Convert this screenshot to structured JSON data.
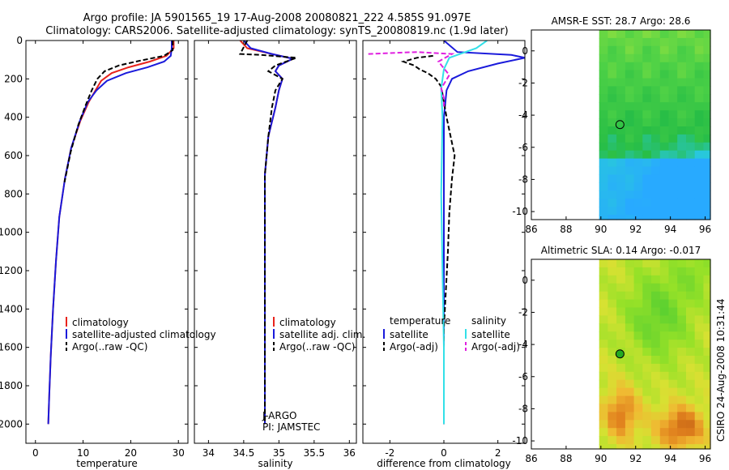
{
  "header": {
    "line1": "Argo profile: JA 5901565_19 17-Aug-2008 20080821_222 4.585S 91.097E",
    "line2": "Climatology: CARS2006. Satellite-adjusted climatology: synTS_20080819.nc (1.9d later)"
  },
  "side_label": "CSIRO 24-Aug-2008 10:31:44",
  "colors": {
    "red": "#e8231c",
    "blue": "#1a1adb",
    "black": "#000000",
    "cyan": "#33e0e8",
    "magenta": "#e020e0"
  },
  "chart_data": [
    {
      "type": "line",
      "id": "temperature",
      "xlabel": "temperature",
      "xlim": [
        -2,
        32
      ],
      "ylim": [
        0,
        2100
      ],
      "xticks": [
        "0",
        "10",
        "20",
        "30"
      ],
      "xtick_values": [
        0,
        10,
        20,
        30
      ],
      "yticks": [
        "0",
        "200",
        "400",
        "600",
        "800",
        "1000",
        "1200",
        "1400",
        "1600",
        "1800",
        "2000"
      ],
      "ytick_values": [
        0,
        200,
        400,
        600,
        800,
        1000,
        1200,
        1400,
        1600,
        1800,
        2000
      ],
      "legend": [
        "climatology",
        "satellite-adjusted climatology",
        "Argo(..raw -QC)"
      ],
      "series": [
        {
          "name": "climatology",
          "color": "red",
          "dash": false,
          "x": [
            29.0,
            29.0,
            27.5,
            24.0,
            19.5,
            16.0,
            13.8,
            12.6,
            11.2,
            9.4,
            7.5,
            6.2,
            5.0,
            4.3,
            3.7,
            3.2,
            2.9,
            2.7
          ],
          "y": [
            0,
            40,
            80,
            110,
            140,
            170,
            210,
            260,
            320,
            420,
            560,
            720,
            920,
            1150,
            1400,
            1650,
            1850,
            2000
          ]
        },
        {
          "name": "satellite-adjusted climatology",
          "color": "blue",
          "dash": false,
          "x": [
            28.6,
            28.6,
            28.4,
            27.0,
            23.5,
            19.0,
            15.0,
            12.8,
            11.0,
            9.3,
            7.5,
            6.2,
            5.0,
            4.3,
            3.7,
            3.2,
            2.9,
            2.7
          ],
          "y": [
            0,
            40,
            80,
            110,
            140,
            170,
            210,
            260,
            320,
            420,
            560,
            720,
            920,
            1150,
            1400,
            1650,
            1850,
            2000
          ]
        },
        {
          "name": "Argo(..raw -QC)",
          "color": "black",
          "dash": true,
          "x": [
            28.8,
            28.8,
            27.0,
            22.0,
            17.5,
            14.5,
            13.0,
            11.8,
            10.5,
            9.0,
            7.4,
            6.1
          ],
          "y": [
            0,
            50,
            80,
            105,
            130,
            160,
            200,
            260,
            340,
            440,
            580,
            740
          ]
        }
      ]
    },
    {
      "type": "line",
      "id": "salinity",
      "xlabel": "salinity",
      "xlim": [
        33.8,
        36.1
      ],
      "ylim": [
        0,
        2100
      ],
      "xticks": [
        "34",
        "34.5",
        "35",
        "35.5",
        "36"
      ],
      "xtick_values": [
        34,
        34.5,
        35,
        35.5,
        36
      ],
      "legend": [
        "climatology",
        "satellite adj. clim.",
        "Argo(..raw -QC)"
      ],
      "annotations": [
        "J-ARGO",
        "PI: JAMSTEC"
      ],
      "series": [
        {
          "name": "climatology",
          "color": "red",
          "dash": false,
          "x": [
            34.45,
            34.55,
            34.9,
            35.2,
            35.0,
            34.95,
            35.05,
            35.0,
            34.95,
            34.85,
            34.8,
            34.8,
            34.8,
            34.8
          ],
          "y": [
            0,
            40,
            70,
            95,
            130,
            160,
            200,
            260,
            350,
            500,
            700,
            1000,
            1500,
            2000
          ]
        },
        {
          "name": "satellite adj. clim.",
          "color": "blue",
          "dash": false,
          "x": [
            34.5,
            34.6,
            34.9,
            35.2,
            35.0,
            34.95,
            35.05,
            35.0,
            34.95,
            34.85,
            34.8,
            34.8,
            34.8,
            34.8
          ],
          "y": [
            0,
            40,
            70,
            95,
            130,
            160,
            200,
            260,
            350,
            500,
            700,
            1000,
            1500,
            2000
          ]
        },
        {
          "name": "Argo(..raw -QC)",
          "color": "black",
          "dash": true,
          "x": [
            34.55,
            34.45,
            34.75,
            35.25,
            34.95,
            34.85,
            35.05,
            34.95,
            34.9,
            34.85,
            34.8,
            34.8,
            34.8,
            34.8
          ],
          "y": [
            0,
            70,
            75,
            90,
            130,
            160,
            200,
            260,
            350,
            500,
            700,
            1000,
            1500,
            2000
          ]
        }
      ]
    },
    {
      "type": "line",
      "id": "difference",
      "xlabel": "difference from climatology",
      "xlim": [
        -3,
        3
      ],
      "ylim": [
        0,
        2100
      ],
      "xticks": [
        "-2",
        "0",
        "2"
      ],
      "xtick_values": [
        -2,
        0,
        2
      ],
      "legend_headers": [
        "temperature",
        "salinity"
      ],
      "legend": [
        "satellite",
        "Argo(-adj)",
        "satellite",
        "Argo(-adj)"
      ],
      "series": [
        {
          "name": "temperature satellite",
          "color": "blue",
          "dash": false,
          "x": [
            0.0,
            0.5,
            2.5,
            3.0,
            2.0,
            0.9,
            0.3,
            0.1,
            0.0,
            0.0,
            0.0,
            0.0
          ],
          "y": [
            0,
            60,
            75,
            90,
            120,
            160,
            200,
            260,
            400,
            800,
            1400,
            2000
          ]
        },
        {
          "name": "temperature Argo(-adj)",
          "color": "black",
          "dash": true,
          "x": [
            -0.4,
            -1.0,
            -1.5,
            -1.1,
            -0.9,
            -0.6,
            -0.3,
            -0.1,
            0.1,
            0.4,
            0.3,
            0.2,
            0.15,
            0.0,
            0.0
          ],
          "y": [
            80,
            90,
            110,
            130,
            150,
            170,
            200,
            240,
            400,
            600,
            720,
            900,
            1100,
            1500,
            2000
          ]
        },
        {
          "name": "salinity satellite",
          "color": "cyan",
          "dash": false,
          "x": [
            1.6,
            1.2,
            0.2,
            0.0,
            -0.1,
            -0.05,
            -0.1,
            -0.05,
            0.0,
            0.0
          ],
          "y": [
            0,
            40,
            90,
            150,
            250,
            400,
            800,
            1200,
            1600,
            2000
          ]
        },
        {
          "name": "salinity Argo(-adj)",
          "color": "magenta",
          "dash": true,
          "x": [
            -2.8,
            -1.0,
            0.3,
            -0.2,
            0.2,
            -0.1,
            0.0,
            0.0
          ],
          "y": [
            70,
            60,
            70,
            110,
            180,
            250,
            300,
            350
          ]
        }
      ]
    },
    {
      "type": "heatmap",
      "id": "amsre-sst",
      "title": "AMSR-E SST: 28.7 Argo: 28.6",
      "xlim": [
        86,
        96.3
      ],
      "ylim": [
        -10.5,
        1.3
      ],
      "xticks": [
        "86",
        "88",
        "90",
        "92",
        "94",
        "96"
      ],
      "xtick_values": [
        86,
        88,
        90,
        92,
        94,
        96
      ],
      "yticks": [
        "0",
        "-2",
        "-4",
        "-6",
        "-8",
        "-10"
      ],
      "ytick_values": [
        0,
        -2,
        -4,
        -6,
        -8,
        -10
      ],
      "data_lon_start": 89.9,
      "argo_marker": {
        "lon": 91.097,
        "lat": -4.585,
        "fill": "none"
      }
    },
    {
      "type": "heatmap",
      "id": "altimetric-sla",
      "title": "Altimetric SLA: 0.14 Argo: -0.017",
      "xlim": [
        86,
        96.3
      ],
      "ylim": [
        -10.5,
        1.3
      ],
      "xticks": [
        "86",
        "88",
        "90",
        "92",
        "94",
        "96"
      ],
      "xtick_values": [
        86,
        88,
        90,
        92,
        94,
        96
      ],
      "yticks": [
        "0",
        "-2",
        "-4",
        "-6",
        "-8",
        "-10"
      ],
      "ytick_values": [
        0,
        -2,
        -4,
        -6,
        -8,
        -10
      ],
      "data_lon_start": 89.9,
      "argo_marker": {
        "lon": 91.097,
        "lat": -4.585,
        "fill": "#22aa22"
      }
    }
  ]
}
